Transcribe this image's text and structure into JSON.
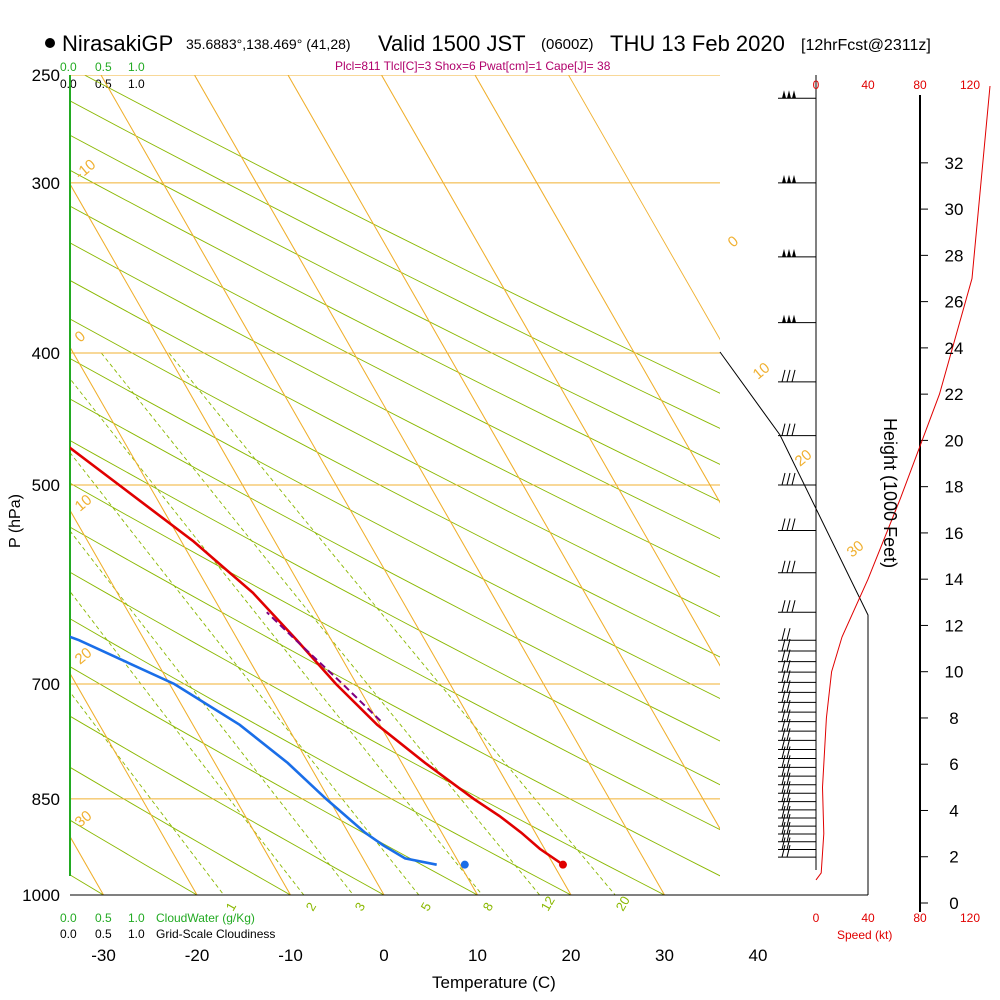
{
  "header": {
    "station": "NirasakiGP",
    "coords": "35.6883°,138.469° (41,28)",
    "valid_main": "Valid 1500 JST",
    "valid_utc": "(0600Z)",
    "valid_date": "THU 13 Feb 2020",
    "forecast": "[12hrFcst@2311z]",
    "indices": "Plcl=811 Tlcl[C]=3 Shox=6 Pwat[cm]=1 Cape[J]= 38"
  },
  "colors": {
    "temperature": "#e00000",
    "dewpoint": "#1a6ee8",
    "isotherm": "#f0b030",
    "mixing": "#8ab800",
    "cloudwater": "#22aa22",
    "parcel": "#800080"
  },
  "chart_data": {
    "type": "line",
    "title": "Skew-T log-P sounding",
    "xlabel": "Temperature (C)",
    "ylabel": "P (hPa)",
    "y2label": "Height (1000 Feet)",
    "x_ticks": [
      -30,
      -20,
      -10,
      0,
      10,
      20,
      30,
      40
    ],
    "p_ticks": [
      250,
      300,
      400,
      500,
      700,
      850,
      1000
    ],
    "height_ticks": [
      0,
      2,
      4,
      6,
      8,
      10,
      12,
      14,
      16,
      18,
      20,
      22,
      24,
      26,
      28,
      30,
      32
    ],
    "isotherm_labels": [
      "-10",
      "0",
      "10",
      "20",
      "30",
      "0",
      "10",
      "20",
      "30"
    ],
    "mixing_labels": [
      "1",
      "2",
      "3",
      "5",
      "8",
      "12",
      "20"
    ],
    "cloud_scale_top": [
      "0.0",
      "0.5",
      "1.0"
    ],
    "cloudiness_scale_top": [
      "0.0",
      "0.5",
      "1.0"
    ],
    "cloud_scale_bottom": [
      "0.0",
      "0.5",
      "1.0"
    ],
    "cloud_water_label": "CloudWater (g/Kg)",
    "cloudiness_scale_bottom": [
      "0.0",
      "0.5",
      "1.0"
    ],
    "cloudiness_label": "Grid-Scale Cloudiness",
    "speed_ticks": [
      "0",
      "40",
      "80",
      "120"
    ],
    "speed_label": "Speed (kt)",
    "series": [
      {
        "name": "Temperature",
        "points": [
          {
            "p": 950,
            "t": 21.0
          },
          {
            "p": 925,
            "t": 19.5
          },
          {
            "p": 900,
            "t": 18.5
          },
          {
            "p": 875,
            "t": 17.2
          },
          {
            "p": 850,
            "t": 15.5
          },
          {
            "p": 800,
            "t": 12.5
          },
          {
            "p": 750,
            "t": 9.7
          },
          {
            "p": 700,
            "t": 7.8
          },
          {
            "p": 650,
            "t": 6.3
          },
          {
            "p": 600,
            "t": 4.5
          },
          {
            "p": 550,
            "t": 1.3
          },
          {
            "p": 500,
            "t": -3.2
          },
          {
            "p": 450,
            "t": -8.2
          },
          {
            "p": 400,
            "t": -14.0
          },
          {
            "p": 350,
            "t": -21.0
          },
          {
            "p": 320,
            "t": -26.0
          },
          {
            "p": 300,
            "t": -30.5
          },
          {
            "p": 280,
            "t": -34.5
          },
          {
            "p": 260,
            "t": -38.0
          }
        ]
      },
      {
        "name": "Dewpoint",
        "points": [
          {
            "p": 950,
            "t": 7.5
          },
          {
            "p": 940,
            "t": 4.5
          },
          {
            "p": 920,
            "t": 3.0
          },
          {
            "p": 900,
            "t": 1.8
          },
          {
            "p": 850,
            "t": -0.3
          },
          {
            "p": 800,
            "t": -2.2
          },
          {
            "p": 750,
            "t": -5.0
          },
          {
            "p": 700,
            "t": -9.5
          },
          {
            "p": 650,
            "t": -17.0
          },
          {
            "p": 600,
            "t": -28.0
          },
          {
            "p": 530,
            "t": -49.0
          },
          {
            "p": 500,
            "t": -48.0
          },
          {
            "p": 450,
            "t": -43.0
          },
          {
            "p": 400,
            "t": -43.0
          },
          {
            "p": 350,
            "t": -43.0
          },
          {
            "p": 300,
            "t": -46.5
          },
          {
            "p": 280,
            "t": -52.0
          },
          {
            "p": 260,
            "t": -57.0
          }
        ]
      },
      {
        "name": "Parcel",
        "points": [
          {
            "p": 745,
            "t": 10.3
          },
          {
            "p": 700,
            "t": 8.5
          },
          {
            "p": 650,
            "t": 6.2
          },
          {
            "p": 620,
            "t": 4.8
          }
        ]
      },
      {
        "name": "Speed",
        "points": [
          {
            "speed": 0,
            "h": 1.0
          },
          {
            "speed": 4,
            "h": 1.3
          },
          {
            "speed": 6,
            "h": 3.0
          },
          {
            "speed": 5,
            "h": 5.0
          },
          {
            "speed": 8,
            "h": 8.0
          },
          {
            "speed": 12,
            "h": 10.0
          },
          {
            "speed": 20,
            "h": 11.5
          },
          {
            "speed": 40,
            "h": 14.0
          },
          {
            "speed": 65,
            "h": 17.5
          },
          {
            "speed": 95,
            "h": 22.0
          },
          {
            "speed": 120,
            "h": 27.0
          }
        ]
      }
    ],
    "surface": {
      "t": 21.0,
      "td": 10.5,
      "p": 950
    }
  }
}
